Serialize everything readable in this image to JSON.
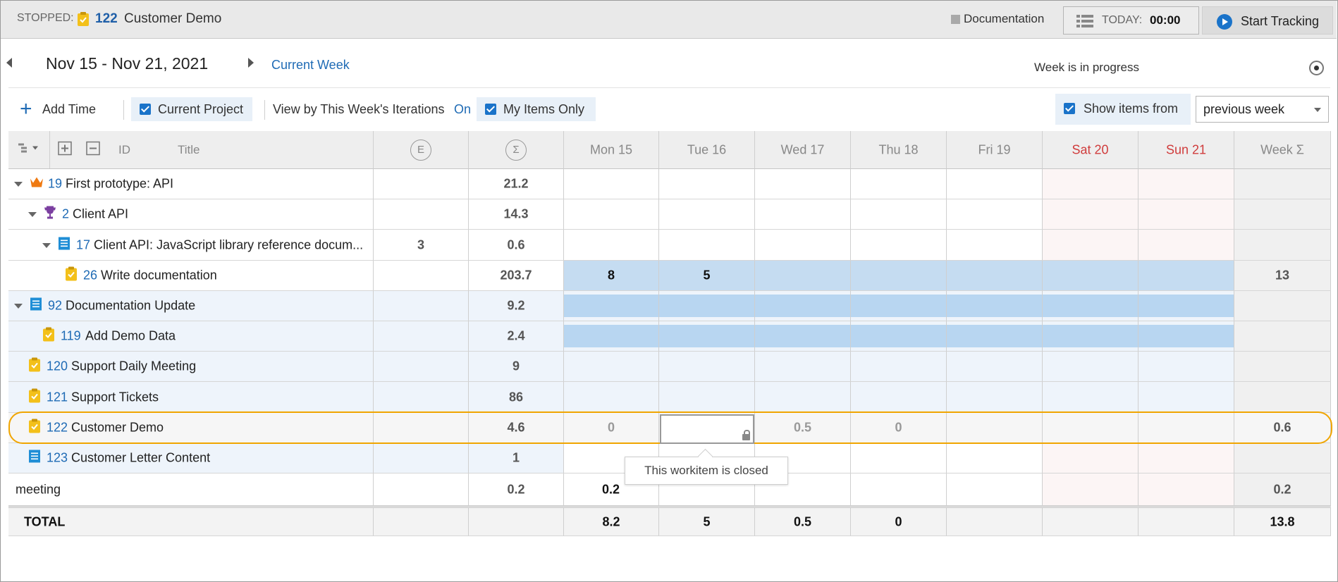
{
  "tracker": {
    "status_label": "STOPPED:",
    "item_id": "122",
    "item_title": "Customer Demo",
    "activity": "Documentation",
    "today_label": "TODAY:",
    "today_value": "00:00",
    "start_label": "Start Tracking"
  },
  "week_nav": {
    "date_range": "Nov 15 - Nov 21, 2021",
    "current_week_link": "Current Week",
    "status": "Week is in progress"
  },
  "toolbar": {
    "add_time": "Add Time",
    "current_project": "Current Project",
    "view_by": "View by This Week's Iterations",
    "view_by_state": "On",
    "my_items_only": "My Items Only",
    "show_items_from": "Show items from",
    "show_items_option": "previous week"
  },
  "grid": {
    "headers": {
      "id": "ID",
      "title": "Title",
      "estimate": "E",
      "sum": "Σ",
      "days": [
        "Mon 15",
        "Tue 16",
        "Wed 17",
        "Thu 18",
        "Fri 19",
        "Sat 20",
        "Sun 21"
      ],
      "week_sum": "Week Σ"
    },
    "rows": [
      {
        "id": "19",
        "title": "First prototype: API",
        "icon": "crown-icon",
        "estimate": "",
        "sum": "21.2",
        "days": [
          "",
          "",
          "",
          "",
          "",
          "",
          ""
        ],
        "week": ""
      },
      {
        "id": "2",
        "title": "Client API",
        "icon": "trophy-icon",
        "estimate": "",
        "sum": "14.3",
        "days": [
          "",
          "",
          "",
          "",
          "",
          "",
          ""
        ],
        "week": ""
      },
      {
        "id": "17",
        "title": "Client API: JavaScript library reference docum...",
        "icon": "document-icon",
        "estimate": "3",
        "sum": "0.6",
        "days": [
          "",
          "",
          "",
          "",
          "",
          "",
          ""
        ],
        "week": ""
      },
      {
        "id": "26",
        "title": "Write documentation",
        "icon": "task-icon",
        "estimate": "",
        "sum": "203.7",
        "days": [
          "8",
          "5",
          "",
          "",
          "",
          "",
          ""
        ],
        "week": "13"
      },
      {
        "id": "92",
        "title": "Documentation Update",
        "icon": "document-icon",
        "estimate": "",
        "sum": "9.2",
        "days": [
          "",
          "",
          "",
          "",
          "",
          "",
          ""
        ],
        "week": ""
      },
      {
        "id": "119",
        "title": "Add Demo Data",
        "icon": "task-icon",
        "estimate": "",
        "sum": "2.4",
        "days": [
          "",
          "",
          "",
          "",
          "",
          "",
          ""
        ],
        "week": ""
      },
      {
        "id": "120",
        "title": "Support Daily Meeting",
        "icon": "task-icon",
        "estimate": "",
        "sum": "9",
        "days": [
          "",
          "",
          "",
          "",
          "",
          "",
          ""
        ],
        "week": ""
      },
      {
        "id": "121",
        "title": "Support Tickets",
        "icon": "task-icon",
        "estimate": "",
        "sum": "86",
        "days": [
          "",
          "",
          "",
          "",
          "",
          "",
          ""
        ],
        "week": ""
      },
      {
        "id": "122",
        "title": "Customer Demo",
        "icon": "task-icon",
        "estimate": "",
        "sum": "4.6",
        "days": [
          "0",
          "",
          "0.5",
          "0",
          "",
          "",
          ""
        ],
        "week": "0.6"
      },
      {
        "id": "123",
        "title": "Customer Letter Content",
        "icon": "document-icon",
        "estimate": "",
        "sum": "1",
        "days": [
          "",
          "",
          "",
          "",
          "",
          "",
          ""
        ],
        "week": ""
      },
      {
        "id": "",
        "title": "meeting",
        "icon": "",
        "estimate": "",
        "sum": "0.2",
        "days": [
          "0.2",
          "",
          "",
          "",
          "",
          "",
          ""
        ],
        "week": "0.2"
      }
    ],
    "total": {
      "label": "TOTAL",
      "days": [
        "8.2",
        "5",
        "0.5",
        "0",
        "",
        "",
        ""
      ],
      "week": "13.8"
    },
    "tooltip": "This workitem is closed"
  },
  "colors": {
    "accent": "#1a73c9",
    "link": "#1f6bb5",
    "highlight": "#f0a500",
    "weekend": "#d03c3c",
    "bar": "#c5dcf1"
  }
}
